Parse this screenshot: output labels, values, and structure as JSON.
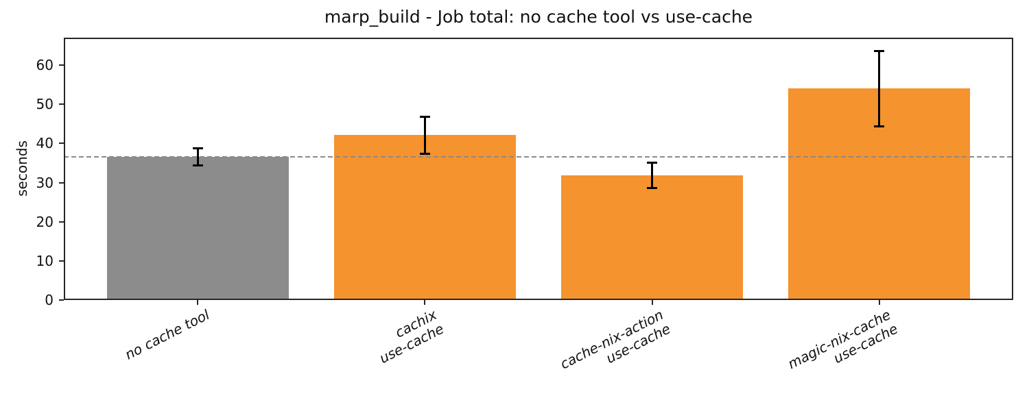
{
  "chart_data": {
    "type": "bar",
    "title": "marp_build - Job total: no cache tool vs use-cache",
    "xlabel": "",
    "ylabel": "seconds",
    "categories": [
      "no cache tool",
      "cachix\nuse-cache",
      "cache-nix-action\nuse-cache",
      "magic-nix-cache\nuse-cache"
    ],
    "values": [
      36.6,
      42.1,
      31.8,
      54.0
    ],
    "errors": [
      2.3,
      4.8,
      3.3,
      9.7
    ],
    "bar_colors": [
      "#8c8c8c",
      "#f5932e",
      "#f5932e",
      "#f5932e"
    ],
    "baseline": {
      "value": 36.6,
      "style": "dashed",
      "color": "#8a8a8a"
    },
    "ylim": [
      0,
      67
    ],
    "yticks": [
      0,
      10,
      20,
      30,
      40,
      50,
      60
    ],
    "grid": false,
    "legend": null,
    "layout_hints": {
      "xtick_rotation_deg": 27,
      "xtick_fontstyle": "italic",
      "bar_width_fraction": 0.8,
      "error_bar_color": "#000000",
      "axis_color": "#262626"
    }
  }
}
